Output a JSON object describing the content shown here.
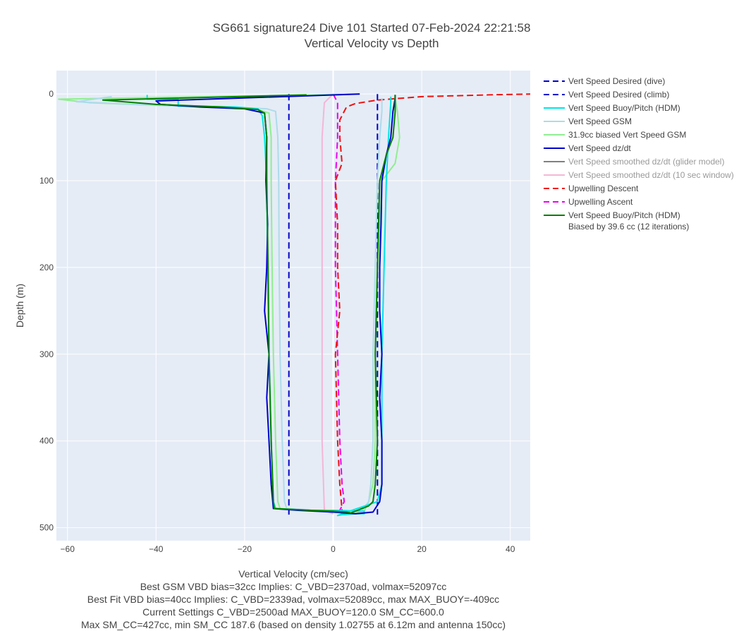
{
  "chart_data": {
    "type": "line",
    "title": "SG661 signature24 Dive 101 Started 07-Feb-2024 22:21:58",
    "subtitle": "Vertical Velocity vs Depth",
    "xlabel": "Vertical Velocity (cm/sec)",
    "ylabel": "Depth (m)",
    "xlim": [
      -62.5,
      44.5
    ],
    "ylim": [
      515,
      -27
    ],
    "x_ticks": [
      -60,
      -40,
      -20,
      0,
      20,
      40
    ],
    "x_tick_labels": [
      "−60",
      "−40",
      "−20",
      "0",
      "20",
      "40"
    ],
    "y_ticks": [
      0,
      100,
      200,
      300,
      400,
      500
    ],
    "y_tick_labels": [
      "0",
      "100",
      "200",
      "300",
      "400",
      "500"
    ],
    "grid": true,
    "legend_position": "right",
    "notes": [
      "Best GSM VBD bias=32cc Implies: C_VBD=2370ad, volmax=52097cc",
      "Best Fit VBD bias=40cc Implies: C_VBD=2339ad, volmax=52089cc, max MAX_BUOY=-409cc",
      "Current Settings C_VBD=2500ad MAX_BUOY=120.0 SM_CC=600.0",
      "Max SM_CC=427cc, min SM_CC 187.6 (based on density 1.02755 at 6.12m and antenna 150cc)"
    ],
    "series": [
      {
        "name": "Vert Speed Desired (dive)",
        "color": "#0000cc",
        "dash": "dash",
        "legend_dim": false,
        "points": [
          [
            -10,
            0
          ],
          [
            -10,
            485
          ]
        ]
      },
      {
        "name": "Vert Speed Desired (climb)",
        "color": "#0000cc",
        "dash": "dash",
        "legend_dim": false,
        "points": [
          [
            10,
            0
          ],
          [
            10,
            485
          ]
        ]
      },
      {
        "name": "Vert Speed Buoy/Pitch (HDM)",
        "color": "#00e5e5",
        "dash": "solid",
        "legend_dim": false,
        "points": [
          [
            -42,
            1
          ],
          [
            -42,
            6
          ],
          [
            -35,
            6
          ],
          [
            -35,
            14
          ],
          [
            -22,
            15
          ],
          [
            -17,
            17
          ],
          [
            -16,
            25
          ],
          [
            -15.5,
            50
          ],
          [
            -15,
            100
          ],
          [
            -14.8,
            200
          ],
          [
            -14.5,
            300
          ],
          [
            -14,
            400
          ],
          [
            -13.5,
            470
          ],
          [
            -13,
            478
          ],
          [
            -5,
            480
          ],
          [
            0,
            480
          ],
          [
            7,
            481
          ],
          [
            7,
            484
          ],
          [
            5,
            484
          ],
          [
            2,
            485
          ],
          [
            1,
            486
          ],
          [
            2,
            484
          ],
          [
            10,
            470
          ],
          [
            11,
            450
          ],
          [
            11,
            400
          ],
          [
            11,
            300
          ],
          [
            11.5,
            200
          ],
          [
            12,
            100
          ],
          [
            12.5,
            50
          ],
          [
            13,
            10
          ],
          [
            13,
            3
          ]
        ]
      },
      {
        "name": "Vert Speed GSM",
        "color": "#aedbea",
        "dash": "solid",
        "legend_dim": false,
        "points": [
          [
            -50,
            3
          ],
          [
            -54,
            6
          ],
          [
            -58,
            9
          ],
          [
            -40,
            13
          ],
          [
            -24,
            15
          ],
          [
            -15,
            17
          ],
          [
            -13,
            20
          ],
          [
            -12.5,
            50
          ],
          [
            -12.3,
            100
          ],
          [
            -12.2,
            200
          ],
          [
            -12,
            300
          ],
          [
            -11.5,
            400
          ],
          [
            -11,
            470
          ],
          [
            -10.5,
            478
          ],
          [
            -5,
            480
          ],
          [
            0,
            481
          ],
          [
            3,
            483
          ],
          [
            6,
            484
          ],
          [
            8,
            470
          ],
          [
            8.5,
            450
          ],
          [
            9,
            400
          ],
          [
            9,
            300
          ],
          [
            9.5,
            200
          ],
          [
            10,
            100
          ],
          [
            10.5,
            50
          ],
          [
            11,
            20
          ],
          [
            11,
            5
          ]
        ]
      },
      {
        "name": "31.9cc biased Vert Speed GSM",
        "color": "#90ee90",
        "dash": "solid",
        "legend_dim": false,
        "points": [
          [
            6,
            0
          ],
          [
            -62,
            6
          ],
          [
            -55,
            10
          ],
          [
            -40,
            13
          ],
          [
            -22,
            16
          ],
          [
            -17,
            18
          ],
          [
            -14.5,
            22
          ],
          [
            -14,
            50
          ],
          [
            -14,
            100
          ],
          [
            -13.8,
            200
          ],
          [
            -13.5,
            300
          ],
          [
            -13,
            400
          ],
          [
            -12.5,
            470
          ],
          [
            -12,
            478
          ],
          [
            -5,
            480
          ],
          [
            0,
            482
          ],
          [
            5,
            483
          ],
          [
            7,
            481
          ],
          [
            8,
            470
          ],
          [
            9,
            450
          ],
          [
            9.5,
            400
          ],
          [
            9.5,
            300
          ],
          [
            10,
            200
          ],
          [
            11,
            100
          ],
          [
            14,
            80
          ],
          [
            15,
            50
          ],
          [
            14.5,
            20
          ],
          [
            14,
            5
          ],
          [
            14,
            1
          ]
        ]
      },
      {
        "name": "Vert Speed dz/dt",
        "color": "#0000cc",
        "dash": "solid",
        "legend_dim": false,
        "points": [
          [
            6,
            0
          ],
          [
            -40,
            8
          ],
          [
            -39,
            12
          ],
          [
            -30,
            15
          ],
          [
            -20,
            17
          ],
          [
            -15.5,
            22
          ],
          [
            -15,
            50
          ],
          [
            -15.2,
            100
          ],
          [
            -14.8,
            150
          ],
          [
            -15,
            200
          ],
          [
            -15.5,
            250
          ],
          [
            -14.5,
            300
          ],
          [
            -15,
            350
          ],
          [
            -14.5,
            400
          ],
          [
            -14,
            450
          ],
          [
            -13.5,
            478
          ],
          [
            -8,
            480
          ],
          [
            0,
            482
          ],
          [
            5,
            484
          ],
          [
            9,
            482
          ],
          [
            10.5,
            470
          ],
          [
            11,
            450
          ],
          [
            11,
            400
          ],
          [
            10.5,
            350
          ],
          [
            11,
            300
          ],
          [
            10.5,
            250
          ],
          [
            10.5,
            200
          ],
          [
            10.8,
            150
          ],
          [
            11,
            100
          ],
          [
            12,
            70
          ],
          [
            13,
            50
          ],
          [
            13.5,
            20
          ],
          [
            14,
            5
          ],
          [
            14,
            1
          ]
        ]
      },
      {
        "name": "Vert Speed smoothed dz/dt (glider model)",
        "color": "#808080",
        "dash": "solid",
        "legend_dim": true,
        "points": []
      },
      {
        "name": "Vert Speed smoothed dz/dt (10 sec window)",
        "color": "#f4b6d8",
        "dash": "solid",
        "legend_dim": true,
        "points": [
          [
            0,
            0
          ],
          [
            -2,
            10
          ],
          [
            -2.5,
            50
          ],
          [
            -2.5,
            200
          ],
          [
            -2.5,
            400
          ],
          [
            -2,
            480
          ],
          [
            0,
            484
          ]
        ]
      },
      {
        "name": "Upwelling Descent",
        "color": "#ee1111",
        "dash": "dash",
        "legend_dim": false,
        "points": [
          [
            45,
            0
          ],
          [
            35,
            1
          ],
          [
            20,
            3
          ],
          [
            10,
            7
          ],
          [
            5,
            11
          ],
          [
            3,
            15
          ],
          [
            1.5,
            30
          ],
          [
            1.5,
            50
          ],
          [
            2,
            80
          ],
          [
            0.5,
            100
          ],
          [
            1,
            150
          ],
          [
            1,
            200
          ],
          [
            1.5,
            250
          ],
          [
            0.5,
            300
          ],
          [
            1,
            400
          ],
          [
            1.5,
            450
          ],
          [
            2,
            480
          ]
        ]
      },
      {
        "name": "Upwelling Ascent",
        "color": "#ee00ee",
        "dash": "dash",
        "legend_dim": false,
        "points": [
          [
            0,
            0
          ],
          [
            1,
            10
          ],
          [
            1,
            50
          ],
          [
            0.5,
            100
          ],
          [
            0.5,
            200
          ],
          [
            1,
            300
          ],
          [
            1.5,
            400
          ],
          [
            2,
            450
          ],
          [
            2.5,
            470
          ],
          [
            1.5,
            480
          ],
          [
            0.5,
            485
          ]
        ]
      },
      {
        "name": "Vert Speed Buoy/Pitch (HDM)\nBiased by 39.6 cc (12 iterations)",
        "color": "#008000",
        "dash": "solid",
        "legend_dim": false,
        "points": [
          [
            -6,
            1
          ],
          [
            -52,
            7
          ],
          [
            -40,
            12
          ],
          [
            -25,
            15
          ],
          [
            -17,
            18
          ],
          [
            -15.5,
            22
          ],
          [
            -15,
            50
          ],
          [
            -15,
            100
          ],
          [
            -14.7,
            200
          ],
          [
            -14.5,
            300
          ],
          [
            -14,
            400
          ],
          [
            -13.5,
            470
          ],
          [
            -13.3,
            478
          ],
          [
            -5,
            480
          ],
          [
            0,
            481
          ],
          [
            3,
            482
          ],
          [
            4,
            483
          ],
          [
            8,
            475
          ],
          [
            9,
            470
          ],
          [
            9.5,
            450
          ],
          [
            10,
            400
          ],
          [
            9.5,
            300
          ],
          [
            10,
            200
          ],
          [
            10.5,
            100
          ],
          [
            12,
            70
          ],
          [
            13.5,
            50
          ],
          [
            14,
            20
          ],
          [
            14,
            5
          ],
          [
            14,
            1
          ]
        ]
      }
    ]
  }
}
